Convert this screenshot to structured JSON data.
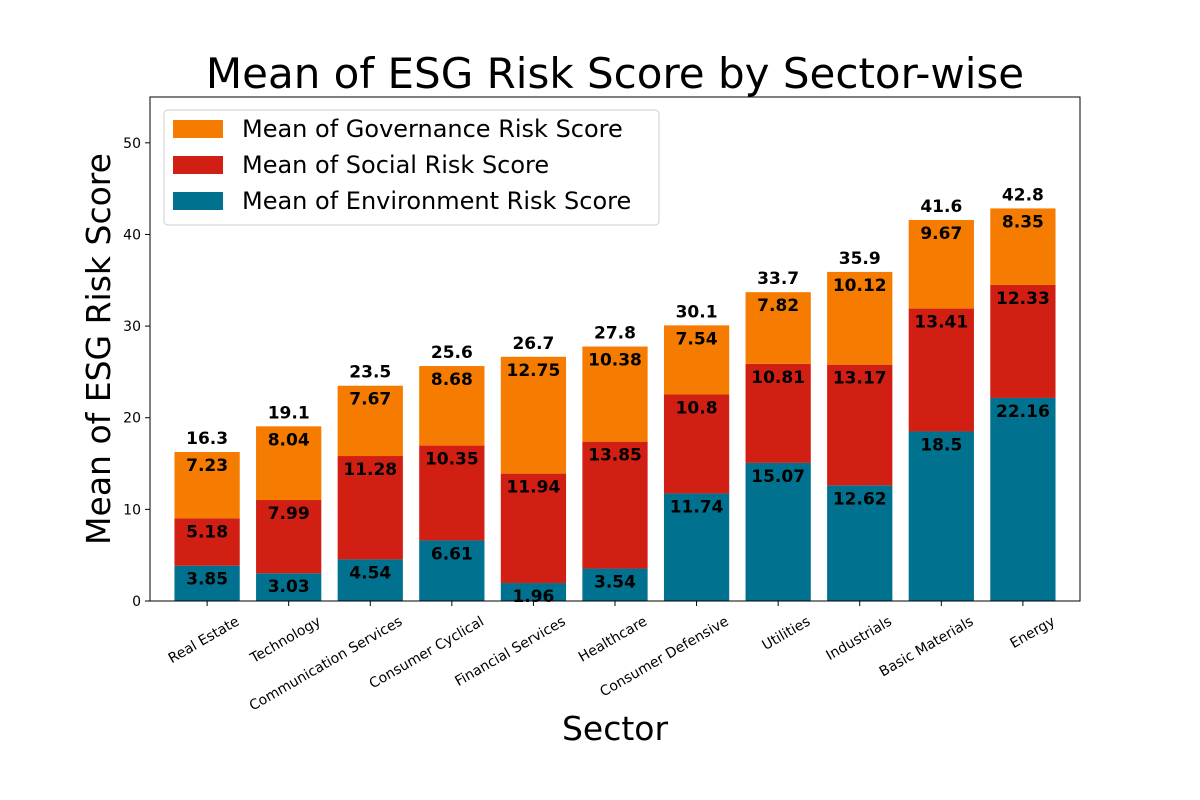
{
  "chart_data": {
    "type": "bar",
    "stacked": true,
    "title": "Mean of ESG Risk Score by Sector-wise",
    "xlabel": "Sector",
    "ylabel": "Mean of ESG Risk Score",
    "ylim": [
      0,
      55
    ],
    "yticks": [
      0,
      10,
      20,
      30,
      40,
      50
    ],
    "grid": false,
    "legend_position": "top-left",
    "categories": [
      "Real Estate",
      "Technology",
      "Communication Services",
      "Consumer Cyclical",
      "Financial Services",
      "Healthcare",
      "Consumer Defensive",
      "Utilities",
      "Industrials",
      "Basic Materials",
      "Energy"
    ],
    "series": [
      {
        "name": "Mean of Environment Risk Score",
        "color": "#00718f",
        "values": [
          3.85,
          3.03,
          4.54,
          6.61,
          1.96,
          3.54,
          11.74,
          15.07,
          12.62,
          18.5,
          22.16
        ]
      },
      {
        "name": "Mean of Social Risk Score",
        "color": "#d11f14",
        "values": [
          5.18,
          7.99,
          11.28,
          10.35,
          11.94,
          13.85,
          10.8,
          10.81,
          13.17,
          13.41,
          12.33
        ]
      },
      {
        "name": "Mean of Governance Risk Score",
        "color": "#f57c00",
        "values": [
          7.23,
          8.04,
          7.67,
          8.68,
          12.75,
          10.38,
          7.54,
          7.82,
          10.12,
          9.67,
          8.35
        ]
      }
    ],
    "totals": [
      "16.3",
      "19.1",
      "23.5",
      "25.6",
      "26.7",
      "27.8",
      "30.1",
      "33.7",
      "35.9",
      "41.6",
      "42.8"
    ],
    "legend_order": [
      2,
      1,
      0
    ]
  }
}
